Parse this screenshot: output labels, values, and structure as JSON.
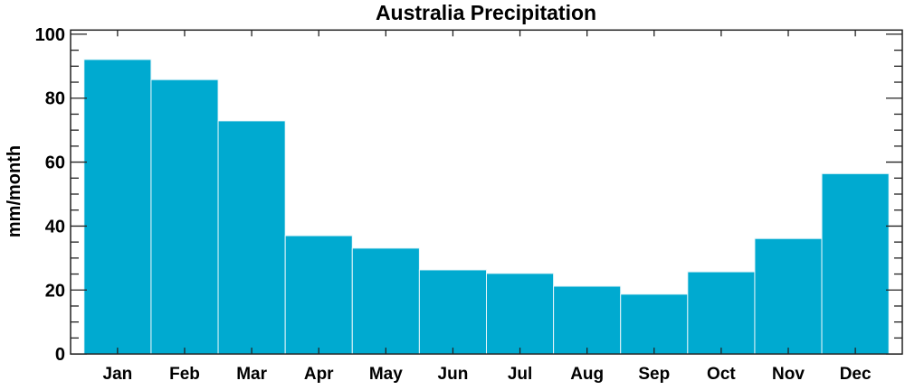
{
  "chart_data": {
    "type": "bar",
    "title": "Australia Precipitation",
    "xlabel": "",
    "ylabel": "mm/month",
    "categories": [
      "Jan",
      "Feb",
      "Mar",
      "Apr",
      "May",
      "Jun",
      "Jul",
      "Aug",
      "Sep",
      "Oct",
      "Nov",
      "Dec"
    ],
    "values": [
      92.1,
      85.8,
      72.9,
      37.0,
      33.1,
      26.3,
      25.2,
      21.2,
      18.7,
      25.7,
      36.1,
      56.4
    ],
    "ylim": [
      0,
      101.3
    ],
    "yticks": [
      0,
      20,
      40,
      60,
      80,
      100
    ],
    "yminor_step": 5,
    "grid": false,
    "bar_color": "#00aad0",
    "bar_edge_color": "#e8f6fa"
  }
}
